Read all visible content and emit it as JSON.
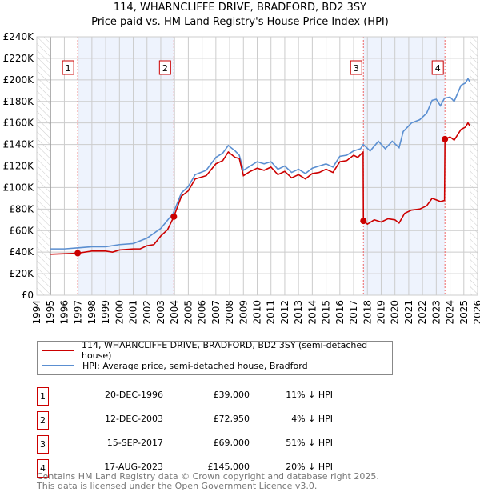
{
  "header": {
    "title": "114, WHARNCLIFFE DRIVE, BRADFORD, BD2 3SY",
    "subtitle": "Price paid vs. HM Land Registry's House Price Index (HPI)"
  },
  "chart_data": {
    "type": "line",
    "title": "114, WHARNCLIFFE DRIVE, BRADFORD, BD2 3SY",
    "xlim": [
      1994,
      2026
    ],
    "ylim": [
      0,
      240000
    ],
    "x_ticks": [
      "1994",
      "1995",
      "1996",
      "1997",
      "1998",
      "1999",
      "2000",
      "2001",
      "2002",
      "2003",
      "2004",
      "2005",
      "2006",
      "2007",
      "2008",
      "2009",
      "2010",
      "2011",
      "2012",
      "2013",
      "2014",
      "2015",
      "2016",
      "2017",
      "2018",
      "2019",
      "2020",
      "2021",
      "2022",
      "2023",
      "2024",
      "2025",
      "2026"
    ],
    "y_ticks": [
      {
        "v": 0,
        "label": "£0"
      },
      {
        "v": 20000,
        "label": "£20K"
      },
      {
        "v": 40000,
        "label": "£40K"
      },
      {
        "v": 60000,
        "label": "£60K"
      },
      {
        "v": 80000,
        "label": "£80K"
      },
      {
        "v": 100000,
        "label": "£100K"
      },
      {
        "v": 120000,
        "label": "£120K"
      },
      {
        "v": 140000,
        "label": "£140K"
      },
      {
        "v": 160000,
        "label": "£160K"
      },
      {
        "v": 180000,
        "label": "£180K"
      },
      {
        "v": 200000,
        "label": "£200K"
      },
      {
        "v": 220000,
        "label": "£220K"
      },
      {
        "v": 240000,
        "label": "£240K"
      }
    ],
    "grid": true,
    "colors": {
      "red": "#cc0000",
      "blue": "#5b8fd1",
      "band": "#eef3fd",
      "vline": "#ee6666"
    },
    "series": [
      {
        "name": "114, WHARNCLIFFE DRIVE, BRADFORD, BD2 3SY (semi-detached house)",
        "color": "#cc0000",
        "x": [
          1995,
          1996,
          1996.97,
          1998,
          1999,
          1999.5,
          2000,
          2001,
          2001.5,
          2002,
          2002.5,
          2003,
          2003.5,
          2003.95,
          2004.5,
          2005,
          2005.5,
          2006.3,
          2007,
          2007.5,
          2007.9,
          2008.4,
          2008.7,
          2009,
          2009.5,
          2010,
          2010.5,
          2011,
          2011.5,
          2012,
          2012.5,
          2013,
          2013.5,
          2014,
          2014.5,
          2015,
          2015.5,
          2016,
          2016.5,
          2017,
          2017.3,
          2017.69,
          2017.71,
          2018,
          2018.5,
          2019,
          2019.5,
          2020,
          2020.3,
          2020.7,
          2021.2,
          2021.8,
          2022.3,
          2022.7,
          2023.3,
          2023.6,
          2023.63,
          2024,
          2024.3,
          2024.8,
          2025.1,
          2025.3,
          2025.45
        ],
        "y": [
          38000,
          38500,
          39000,
          41000,
          41000,
          40000,
          42000,
          43000,
          43000,
          46000,
          47000,
          55000,
          61000,
          72950,
          92000,
          97000,
          108000,
          111000,
          122000,
          125000,
          133000,
          128000,
          127000,
          111000,
          115000,
          118000,
          116000,
          119000,
          112000,
          115000,
          109000,
          112000,
          108000,
          113000,
          114000,
          117000,
          114000,
          124000,
          125000,
          130000,
          128000,
          133000,
          69000,
          66000,
          70000,
          68000,
          71000,
          70000,
          67000,
          76000,
          79000,
          80000,
          83000,
          90000,
          87000,
          88000,
          145000,
          147000,
          144000,
          154000,
          156000,
          160000,
          157000
        ]
      },
      {
        "name": "HPI: Average price, semi-detached house, Bradford",
        "color": "#5b8fd1",
        "x": [
          1995,
          1996,
          1997,
          1998,
          1999,
          2000,
          2001,
          2002,
          2003,
          2003.9,
          2004.5,
          2005,
          2005.5,
          2006.3,
          2007,
          2007.5,
          2007.9,
          2008.4,
          2008.7,
          2009,
          2009.5,
          2010,
          2010.5,
          2011,
          2011.5,
          2012,
          2012.5,
          2013,
          2013.5,
          2014,
          2014.5,
          2015,
          2015.5,
          2016,
          2016.5,
          2017,
          2017.5,
          2017.7,
          2018.2,
          2018.8,
          2019.3,
          2019.8,
          2020.3,
          2020.6,
          2021.2,
          2021.8,
          2022.3,
          2022.7,
          2023,
          2023.3,
          2023.6,
          2024,
          2024.3,
          2024.8,
          2025.1,
          2025.3,
          2025.45
        ],
        "y": [
          43000,
          43000,
          44000,
          45000,
          45000,
          47000,
          48000,
          53000,
          62000,
          76000,
          95000,
          101000,
          112000,
          116000,
          128000,
          132000,
          139000,
          134000,
          130000,
          116000,
          120000,
          124000,
          122000,
          124000,
          117000,
          120000,
          114000,
          117000,
          113000,
          118000,
          120000,
          122000,
          119000,
          129000,
          130000,
          134000,
          136000,
          140000,
          134000,
          143000,
          136000,
          143000,
          137000,
          152000,
          160000,
          163000,
          169000,
          181000,
          182000,
          176000,
          183000,
          184000,
          180000,
          195000,
          197000,
          201000,
          198000
        ]
      }
    ],
    "sales": [
      {
        "label": "1",
        "x": 1996.97,
        "y": 39000
      },
      {
        "label": "2",
        "x": 2003.95,
        "y": 72950
      },
      {
        "label": "3",
        "x": 2017.71,
        "y": 69000
      },
      {
        "label": "4",
        "x": 2023.63,
        "y": 145000
      }
    ],
    "hatched": [
      [
        1994,
        1995
      ],
      [
        2025.45,
        2026
      ]
    ]
  },
  "legend": {
    "items": [
      "114, WHARNCLIFFE DRIVE, BRADFORD, BD2 3SY (semi-detached house)",
      "HPI: Average price, semi-detached house, Bradford"
    ]
  },
  "transactions": [
    {
      "num": "1",
      "date": "20-DEC-1996",
      "price": "£39,000",
      "hpi": "11% ↓ HPI"
    },
    {
      "num": "2",
      "date": "12-DEC-2003",
      "price": "£72,950",
      "hpi": "4% ↓ HPI"
    },
    {
      "num": "3",
      "date": "15-SEP-2017",
      "price": "£69,000",
      "hpi": "51% ↓ HPI"
    },
    {
      "num": "4",
      "date": "17-AUG-2023",
      "price": "£145,000",
      "hpi": "20% ↓ HPI"
    }
  ],
  "footer": {
    "line1": "Contains HM Land Registry data © Crown copyright and database right 2025.",
    "line2": "This data is licensed under the Open Government Licence v3.0."
  }
}
